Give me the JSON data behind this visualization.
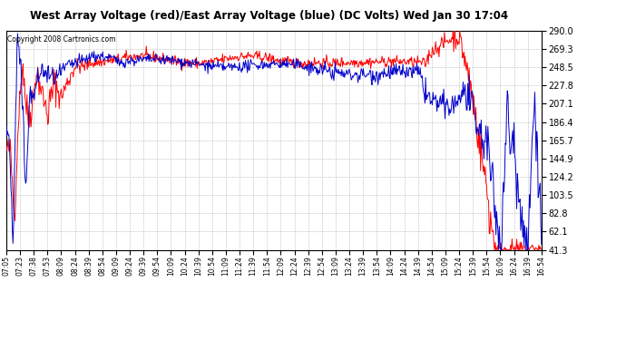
{
  "title": "West Array Voltage (red)/East Array Voltage (blue) (DC Volts) Wed Jan 30 17:04",
  "copyright": "Copyright 2008 Cartronics.com",
  "title_fontsize": 9.5,
  "copyright_fontsize": 6.5,
  "bg_color": "#ffffff",
  "plot_bg_color": "#ffffff",
  "grid_color": "#bbbbbb",
  "red_color": "#ff0000",
  "blue_color": "#0000cc",
  "ymin": 41.3,
  "ymax": 290.0,
  "yticks": [
    41.3,
    62.1,
    82.8,
    103.5,
    124.2,
    144.9,
    165.7,
    186.4,
    207.1,
    227.8,
    248.5,
    269.3,
    290.0
  ],
  "x_labels": [
    "07:05",
    "07:23",
    "07:38",
    "07:53",
    "08:09",
    "08:24",
    "08:39",
    "08:54",
    "09:09",
    "09:24",
    "09:39",
    "09:54",
    "10:09",
    "10:24",
    "10:39",
    "10:54",
    "11:09",
    "11:24",
    "11:39",
    "11:54",
    "12:09",
    "12:24",
    "12:39",
    "12:54",
    "13:09",
    "13:24",
    "13:39",
    "13:54",
    "14:09",
    "14:24",
    "14:39",
    "14:54",
    "15:09",
    "15:24",
    "15:39",
    "15:54",
    "16:09",
    "16:24",
    "16:39",
    "16:54"
  ]
}
